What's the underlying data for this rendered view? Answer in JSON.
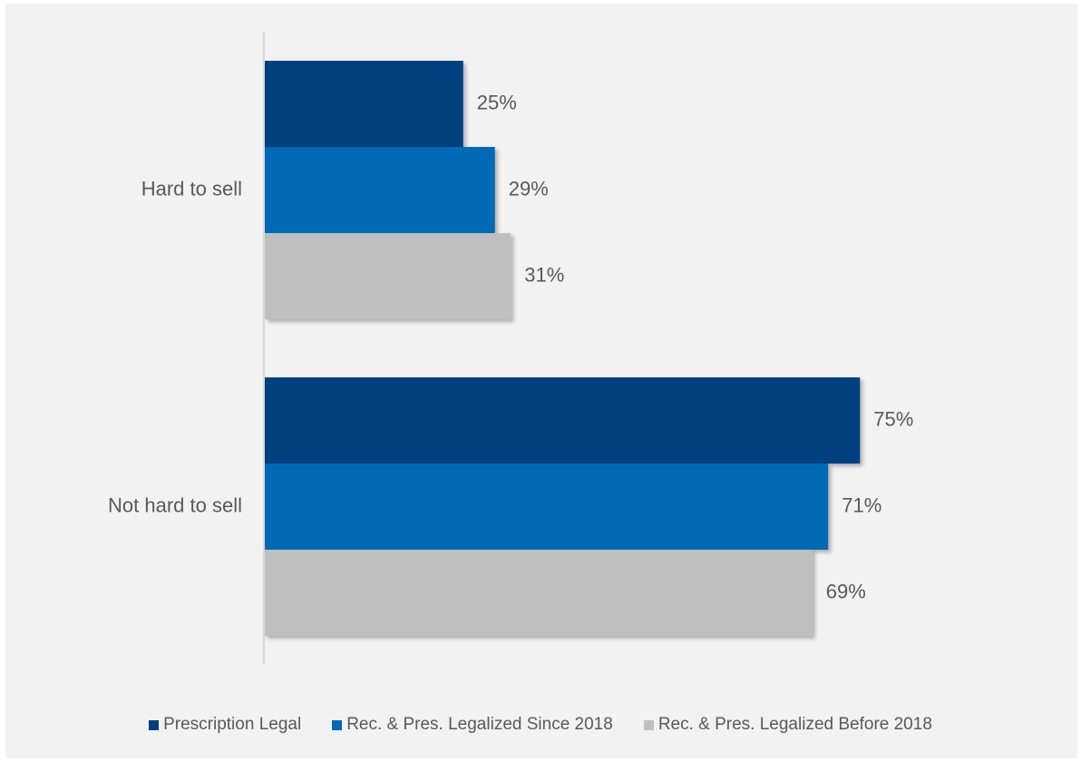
{
  "chart_data": {
    "type": "bar",
    "orientation": "horizontal",
    "categories": [
      "Hard to sell",
      "Not hard to sell"
    ],
    "series": [
      {
        "name": "Prescription Legal",
        "values": [
          25,
          75
        ],
        "color": "#003f7f"
      },
      {
        "name": "Rec. & Pres. Legalized Since 2018",
        "values": [
          29,
          71
        ],
        "color": "#006bb6"
      },
      {
        "name": "Rec. & Pres. Legalized Before 2018",
        "values": [
          31,
          69
        ],
        "color": "#bfbfbf"
      }
    ],
    "value_suffix": "%",
    "xlim": [
      0,
      100
    ],
    "grid": false,
    "legend_position": "bottom"
  }
}
